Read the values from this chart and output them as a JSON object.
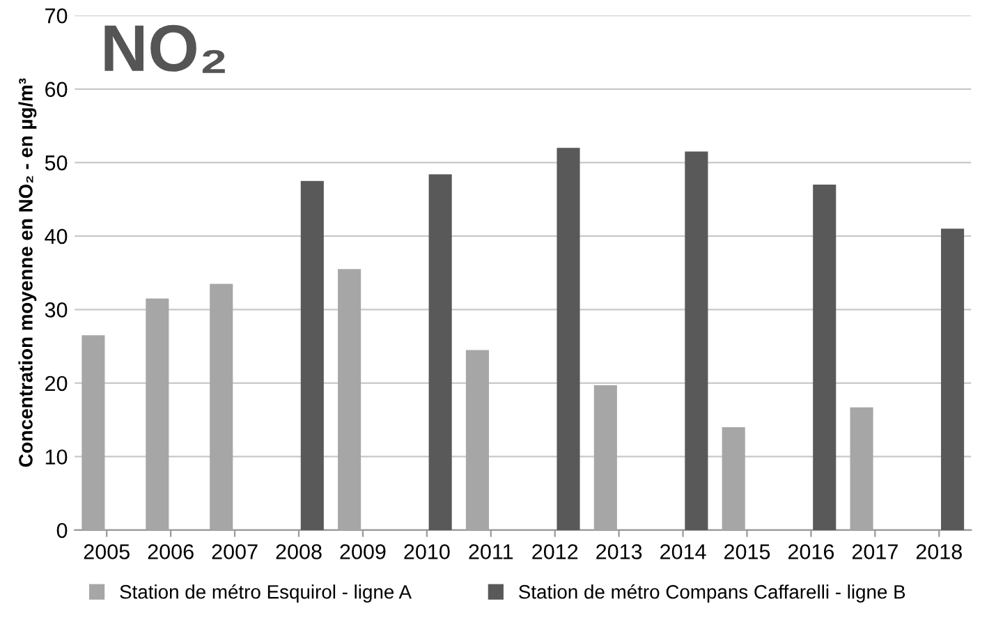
{
  "chart_data": {
    "type": "bar",
    "title": "NO₂",
    "ylabel": "Concentration moyenne en NO₂ - en µg/m³",
    "categories": [
      "2005",
      "2006",
      "2007",
      "2008",
      "2009",
      "2010",
      "2011",
      "2012",
      "2013",
      "2014",
      "2015",
      "2016",
      "2017",
      "2018"
    ],
    "series": [
      {
        "name": "Station de métro Esquirol - ligne A",
        "color": "#a6a6a6",
        "values": [
          26.5,
          31.5,
          33.5,
          null,
          35.5,
          null,
          24.5,
          null,
          19.7,
          null,
          14,
          null,
          16.7,
          null
        ]
      },
      {
        "name": "Station de métro Compans Caffarelli - ligne B",
        "color": "#595959",
        "values": [
          null,
          null,
          null,
          47.5,
          null,
          48.4,
          null,
          52,
          null,
          51.5,
          null,
          47,
          null,
          41
        ]
      }
    ],
    "ylim": [
      0,
      70
    ],
    "yticks": [
      0,
      10,
      20,
      30,
      40,
      50,
      60,
      70
    ],
    "grid": "y",
    "legend": "bottom"
  }
}
